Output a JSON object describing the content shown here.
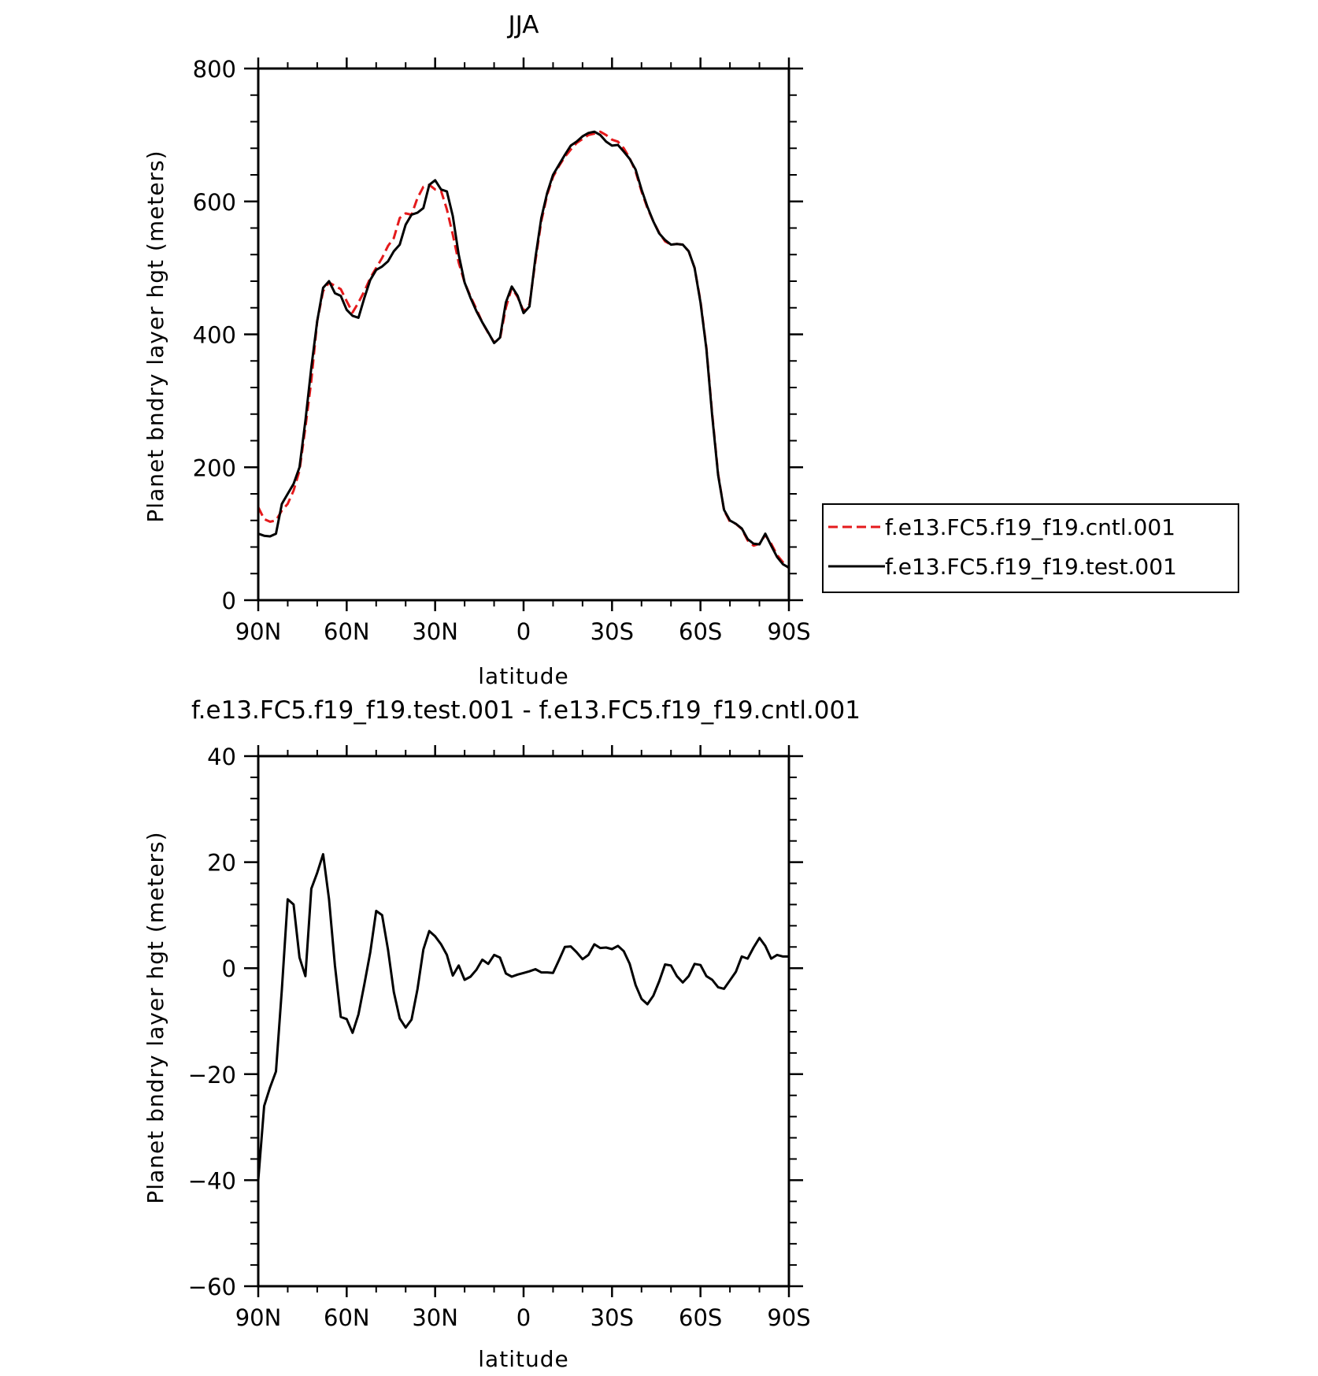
{
  "chart_data": [
    {
      "type": "line",
      "title": "JJA",
      "xlabel": "latitude",
      "ylabel": "Planet bndry layer hgt (meters)",
      "xlim": [
        90,
        -90
      ],
      "ylim": [
        0,
        800
      ],
      "x_ticks": [
        {
          "value": 90,
          "label": "90N"
        },
        {
          "value": 60,
          "label": "60N"
        },
        {
          "value": 30,
          "label": "30N"
        },
        {
          "value": 0,
          "label": "0"
        },
        {
          "value": -30,
          "label": "30S"
        },
        {
          "value": -60,
          "label": "60S"
        },
        {
          "value": -90,
          "label": "90S"
        }
      ],
      "y_ticks": [
        {
          "value": 0,
          "label": "0"
        },
        {
          "value": 200,
          "label": "200"
        },
        {
          "value": 400,
          "label": "400"
        },
        {
          "value": 600,
          "label": "600"
        },
        {
          "value": 800,
          "label": "800"
        }
      ],
      "legend": "right",
      "series": [
        {
          "name": "f.e13.FC5.f19_f19.cntl.001",
          "color": "#e41a1c",
          "dash": "dashed",
          "x": [
            90,
            88,
            86,
            84,
            82,
            80,
            78,
            76,
            74,
            72,
            70,
            68,
            66,
            64,
            62,
            60,
            58,
            56,
            54,
            52,
            50,
            48,
            46,
            44,
            42,
            40,
            38,
            36,
            34,
            32,
            30,
            28,
            26,
            24,
            22,
            20,
            18,
            16,
            14,
            12,
            10,
            8,
            6,
            4,
            2,
            0,
            -2,
            -4,
            -6,
            -8,
            -10,
            -12,
            -14,
            -16,
            -18,
            -20,
            -22,
            -24,
            -26,
            -28,
            -30,
            -32,
            -34,
            -36,
            -38,
            -40,
            -42,
            -44,
            -46,
            -48,
            -50,
            -52,
            -54,
            -56,
            -58,
            -60,
            -62,
            -64,
            -66,
            -68,
            -70,
            -72,
            -74,
            -76,
            -78,
            -80,
            -82,
            -84,
            -86,
            -88,
            -90
          ],
          "values": [
            140,
            122,
            118,
            120,
            135,
            145,
            165,
            195,
            260,
            330,
            420,
            465,
            478,
            473,
            468,
            450,
            433,
            448,
            465,
            485,
            500,
            515,
            533,
            545,
            575,
            582,
            580,
            605,
            622,
            625,
            618,
            616,
            588,
            550,
            508,
            478,
            457,
            438,
            418,
            402,
            388,
            393,
            440,
            470,
            456,
            435,
            445,
            510,
            570,
            610,
            637,
            653,
            667,
            678,
            688,
            694,
            700,
            702,
            705,
            700,
            693,
            690,
            680,
            665,
            645,
            615,
            590,
            570,
            553,
            540,
            535,
            536,
            535,
            525,
            500,
            450,
            380,
            280,
            190,
            135,
            118,
            115,
            107,
            90,
            82,
            85,
            98,
            85,
            68,
            57,
            48
          ]
        },
        {
          "name": "f.e13.FC5.f19_f19.test.001",
          "color": "#000000",
          "dash": "solid",
          "x": [
            90,
            88,
            86,
            84,
            82,
            80,
            78,
            76,
            74,
            72,
            70,
            68,
            66,
            64,
            62,
            60,
            58,
            56,
            54,
            52,
            50,
            48,
            46,
            44,
            42,
            40,
            38,
            36,
            34,
            32,
            30,
            28,
            26,
            24,
            22,
            20,
            18,
            16,
            14,
            12,
            10,
            8,
            6,
            4,
            2,
            0,
            -2,
            -4,
            -6,
            -8,
            -10,
            -12,
            -14,
            -16,
            -18,
            -20,
            -22,
            -24,
            -26,
            -28,
            -30,
            -32,
            -34,
            -36,
            -38,
            -40,
            -42,
            -44,
            -46,
            -48,
            -50,
            -52,
            -54,
            -56,
            -58,
            -60,
            -62,
            -64,
            -66,
            -68,
            -70,
            -72,
            -74,
            -76,
            -78,
            -80,
            -82,
            -84,
            -86,
            -88,
            -90
          ],
          "values": [
            100,
            97,
            96,
            100,
            145,
            160,
            175,
            200,
            270,
            350,
            420,
            470,
            480,
            462,
            458,
            437,
            428,
            425,
            455,
            482,
            497,
            502,
            510,
            525,
            535,
            565,
            580,
            583,
            590,
            625,
            632,
            618,
            615,
            578,
            520,
            478,
            455,
            435,
            418,
            403,
            387,
            395,
            448,
            472,
            458,
            432,
            442,
            515,
            575,
            613,
            640,
            655,
            670,
            684,
            690,
            698,
            703,
            705,
            700,
            690,
            684,
            685,
            675,
            664,
            648,
            618,
            592,
            570,
            552,
            542,
            535,
            536,
            535,
            525,
            500,
            448,
            378,
            277,
            188,
            136,
            120,
            115,
            108,
            92,
            85,
            84,
            100,
            82,
            65,
            54,
            49
          ]
        }
      ]
    },
    {
      "type": "line",
      "title": "f.e13.FC5.f19_f19.test.001 - f.e13.FC5.f19_f19.cntl.001",
      "xlabel": "latitude",
      "ylabel": "Planet bndry layer hgt (meters)",
      "xlim": [
        90,
        -90
      ],
      "ylim": [
        -60,
        40
      ],
      "x_ticks": [
        {
          "value": 90,
          "label": "90N"
        },
        {
          "value": 60,
          "label": "60N"
        },
        {
          "value": 30,
          "label": "30N"
        },
        {
          "value": 0,
          "label": "0"
        },
        {
          "value": -30,
          "label": "30S"
        },
        {
          "value": -60,
          "label": "60S"
        },
        {
          "value": -90,
          "label": "90S"
        }
      ],
      "y_ticks": [
        {
          "value": -60,
          "label": "-60"
        },
        {
          "value": -40,
          "label": "-40"
        },
        {
          "value": -20,
          "label": "-20"
        },
        {
          "value": 0,
          "label": "0"
        },
        {
          "value": 20,
          "label": "20"
        },
        {
          "value": 40,
          "label": "40"
        }
      ],
      "series": [
        {
          "color": "#000000",
          "dash": "solid",
          "x": [
            90,
            88,
            86,
            84,
            82,
            80,
            78,
            76,
            74,
            72,
            70,
            68,
            66,
            64,
            62,
            60,
            58,
            56,
            54,
            52,
            50,
            48,
            46,
            44,
            42,
            40,
            38,
            36,
            34,
            32,
            30,
            28,
            26,
            24,
            22,
            20,
            18,
            16,
            14,
            12,
            10,
            8,
            6,
            4,
            2,
            0,
            -2,
            -4,
            -6,
            -8,
            -10,
            -12,
            -14,
            -16,
            -18,
            -20,
            -22,
            -24,
            -26,
            -28,
            -30,
            -32,
            -34,
            -36,
            -38,
            -40,
            -42,
            -44,
            -46,
            -48,
            -50,
            -52,
            -54,
            -56,
            -58,
            -60,
            -62,
            -64,
            -66,
            -68,
            -70,
            -72,
            -74,
            -76,
            -78,
            -80,
            -82,
            -84,
            -86,
            -88,
            -90
          ],
          "values": [
            -40,
            -26,
            -22.5,
            -19.5,
            -4,
            13,
            12,
            2,
            -1.5,
            15,
            18,
            21.5,
            13,
            0.5,
            -9.2,
            -9.6,
            -12.2,
            -8.7,
            -3,
            3,
            10.8,
            10,
            3.5,
            -4.5,
            -9.5,
            -11.2,
            -9.7,
            -4,
            3.5,
            7,
            6,
            4.5,
            2.5,
            -1.4,
            0.5,
            -2.2,
            -1.6,
            -0.3,
            1.6,
            0.8,
            2.5,
            2,
            -1,
            -1.6,
            -1.2,
            -0.9,
            -0.6,
            -0.2,
            -0.8,
            -0.8,
            -0.9,
            1.5,
            4,
            4.1,
            3,
            1.7,
            2.5,
            4.5,
            3.8,
            3.9,
            3.6,
            4.2,
            3.2,
            0.8,
            -3.2,
            -5.8,
            -6.8,
            -5.2,
            -2.5,
            0.7,
            0.5,
            -1.5,
            -2.7,
            -1.5,
            0.8,
            0.6,
            -1.5,
            -2.2,
            -3.6,
            -3.9,
            -2.3,
            -0.7,
            2.2,
            1.8,
            3.9,
            5.7,
            4.2,
            1.8,
            2.5,
            2.2,
            2.2
          ]
        }
      ]
    }
  ]
}
